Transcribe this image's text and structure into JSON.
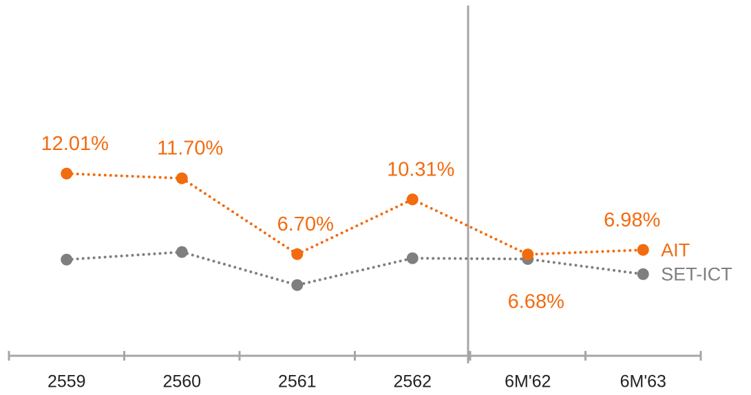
{
  "chart_data": {
    "type": "line",
    "categories": [
      "2559",
      "2560",
      "2561",
      "2562",
      "6M'62",
      "6M'63"
    ],
    "ylim": [
      0,
      23
    ],
    "series": [
      {
        "name": "AIT",
        "color": "#f26b0f",
        "values": [
          12.01,
          11.7,
          6.7,
          10.31,
          6.68,
          6.98
        ],
        "value_labels": [
          "12.01%",
          "11.70%",
          "6.70%",
          "10.31%",
          "6.68%",
          "6.98%"
        ]
      },
      {
        "name": "SET-ICT",
        "color": "#7f7f7f",
        "values": [
          6.34,
          6.84,
          4.66,
          6.43,
          6.38,
          5.38
        ]
      }
    ]
  }
}
